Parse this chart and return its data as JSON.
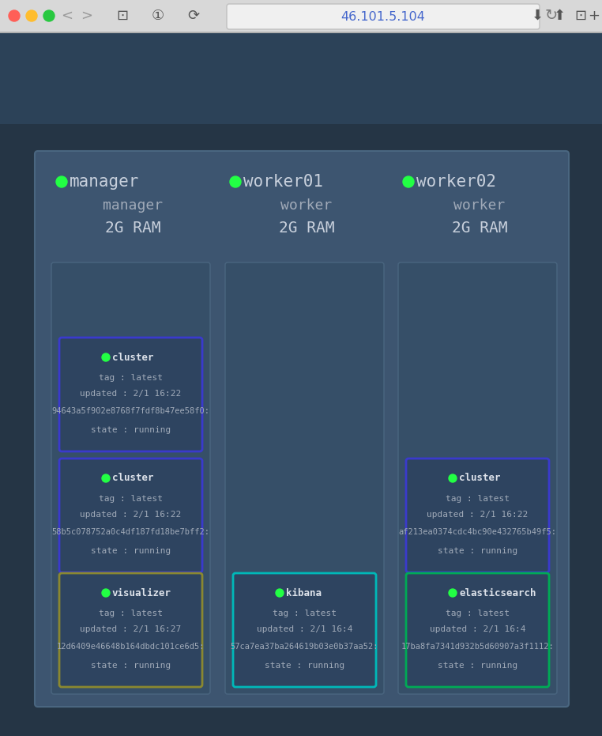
{
  "bg_outer": "#253545",
  "bg_browser_bar": "#e8e8e8",
  "bg_secondary_bar": "#2c4258",
  "bg_main_panel": "#3d5570",
  "bg_node_box": "#364f68",
  "bg_service_card": "#2e4460",
  "border_blue": "#3a3acc",
  "border_yellow": "#8a8830",
  "border_cyan": "#00b8b8",
  "border_green": "#00aa55",
  "text_heading": "#c8d0dc",
  "text_body": "#a0aab8",
  "text_white": "#dde2ea",
  "dot_green": "#22ff44",
  "dot_red": "#ff5f57",
  "dot_orange": "#ffbd2e",
  "dot_green_traffic": "#28c840",
  "url_text": "#4466cc",
  "panel_border": "#4a6680",
  "title": "46.101.5.104",
  "nodes": [
    {
      "name": "manager",
      "role": "manager",
      "ram": "2G RAM",
      "services": [
        {
          "name": "cluster",
          "tag": "tag : latest",
          "updated": "updated : 2/1 16:22",
          "id": "94643a5f902e8768f7fdf8b47ee58f0:",
          "state": "state : running",
          "border": "blue"
        },
        {
          "name": "cluster",
          "tag": "tag : latest",
          "updated": "updated : 2/1 16:22",
          "id": "58b5c078752a0c4df187fd18be7bff2:",
          "state": "state : running",
          "border": "blue"
        },
        {
          "name": "visualizer",
          "tag": "tag : latest",
          "updated": "updated : 2/1 16:27",
          "id": "12d6409e46648b164dbdc101ce6d5:",
          "state": "state : running",
          "border": "yellow"
        }
      ]
    },
    {
      "name": "worker01",
      "role": "worker",
      "ram": "2G RAM",
      "services": [
        {
          "name": "kibana",
          "tag": "tag : latest",
          "updated": "updated : 2/1 16:4",
          "id": "57ca7ea37ba264619b03e0b37aa52:",
          "state": "state : running",
          "border": "cyan"
        }
      ]
    },
    {
      "name": "worker02",
      "role": "worker",
      "ram": "2G RAM",
      "services": [
        {
          "name": "cluster",
          "tag": "tag : latest",
          "updated": "updated : 2/1 16:22",
          "id": "af213ea0374cdc4bc90e432765b49f5:",
          "state": "state : running",
          "border": "blue"
        },
        {
          "name": "elasticsearch",
          "tag": "tag : latest",
          "updated": "updated : 2/1 16:4",
          "id": "17ba8fa7341d932b5d60907a3f1112:",
          "state": "state : running",
          "border": "green"
        }
      ]
    }
  ]
}
